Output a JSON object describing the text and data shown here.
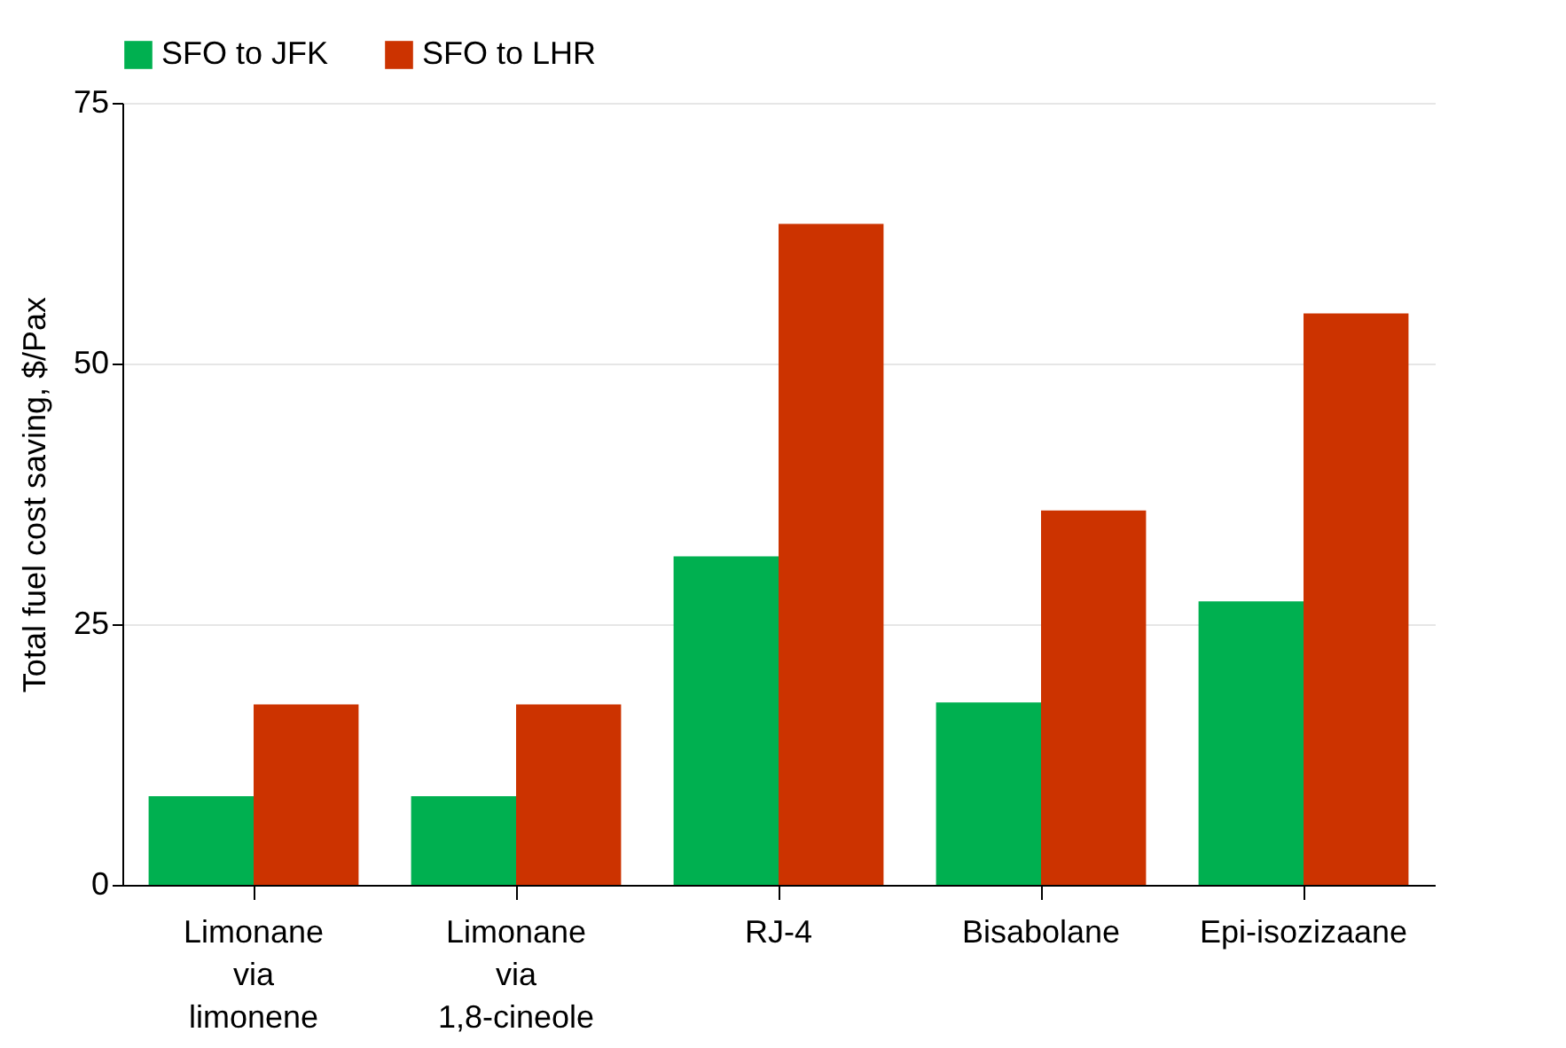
{
  "chart_data": {
    "type": "bar",
    "ylabel": "Total fuel cost saving, $/Pax",
    "categories": [
      "Limonane via limonene",
      "Limonane via 1,8-cineole",
      "RJ-4",
      "Bisabolane",
      "Epi-isozizaane"
    ],
    "series": [
      {
        "name": "SFO to JFK",
        "color": "#00b050",
        "values": [
          8.5,
          8.5,
          31.5,
          17.5,
          27.2
        ]
      },
      {
        "name": "SFO to LHR",
        "color": "#cc3300",
        "values": [
          17.3,
          17.3,
          63.4,
          35.9,
          54.8
        ]
      }
    ],
    "ylim": [
      0,
      75
    ],
    "yticks": [
      0,
      25,
      50,
      75
    ],
    "grid": "y",
    "legend": "top"
  }
}
